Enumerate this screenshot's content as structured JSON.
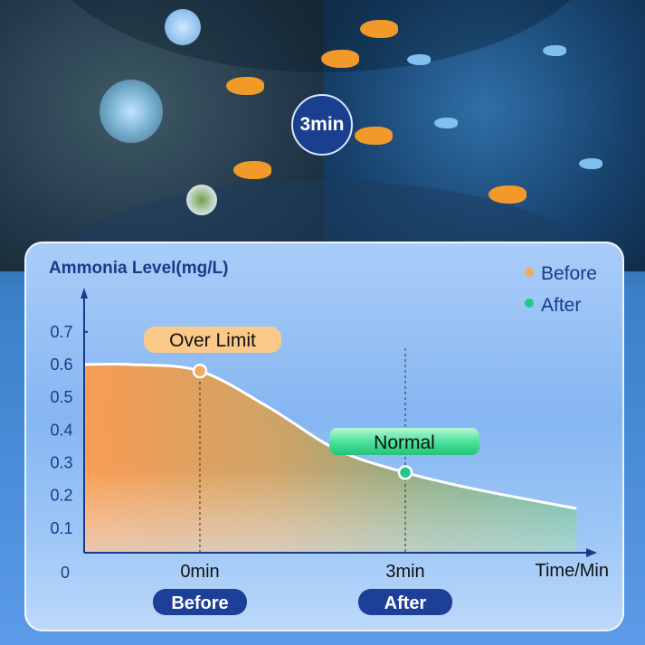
{
  "background": {
    "badge_label": "3min"
  },
  "chart_data": {
    "type": "area",
    "title": "Ammonia Level(mg/L)",
    "xlabel": "Time/Min",
    "ylabel": "",
    "y_ticks": [
      "0.1",
      "0.2",
      "0.3",
      "0.4",
      "0.5",
      "0.6",
      "0.7"
    ],
    "y_tick_values": [
      0.1,
      0.2,
      0.3,
      0.4,
      0.5,
      0.6,
      0.7
    ],
    "origin_label": "0",
    "x_ticks": [
      {
        "value": 0,
        "label": "0min",
        "tag": "Before"
      },
      {
        "value": 3,
        "label": "3min",
        "tag": "After"
      }
    ],
    "ylim": [
      0,
      0.8
    ],
    "grid": false,
    "legend_position": "top-right",
    "legend": [
      {
        "name": "Before",
        "color": "#f5a860"
      },
      {
        "name": "After",
        "color": "#22c98a"
      }
    ],
    "curve": {
      "x": [
        -1.7,
        -1,
        0,
        1,
        2,
        3,
        4,
        5.5
      ],
      "y": [
        0.6,
        0.6,
        0.58,
        0.47,
        0.34,
        0.27,
        0.22,
        0.16
      ]
    },
    "points": [
      {
        "x": 0,
        "y": 0.58,
        "annotation": "Over Limit",
        "color": "#f5a860"
      },
      {
        "x": 3,
        "y": 0.27,
        "annotation": "Normal",
        "color": "#22c98a"
      }
    ],
    "colors": {
      "axis": "#1b3a8c",
      "text": "#1b3a8c",
      "tag_bg": "#1d3f97",
      "over_limit_bg": "#fbc98a",
      "normal_bg": "#4fe29b"
    }
  }
}
